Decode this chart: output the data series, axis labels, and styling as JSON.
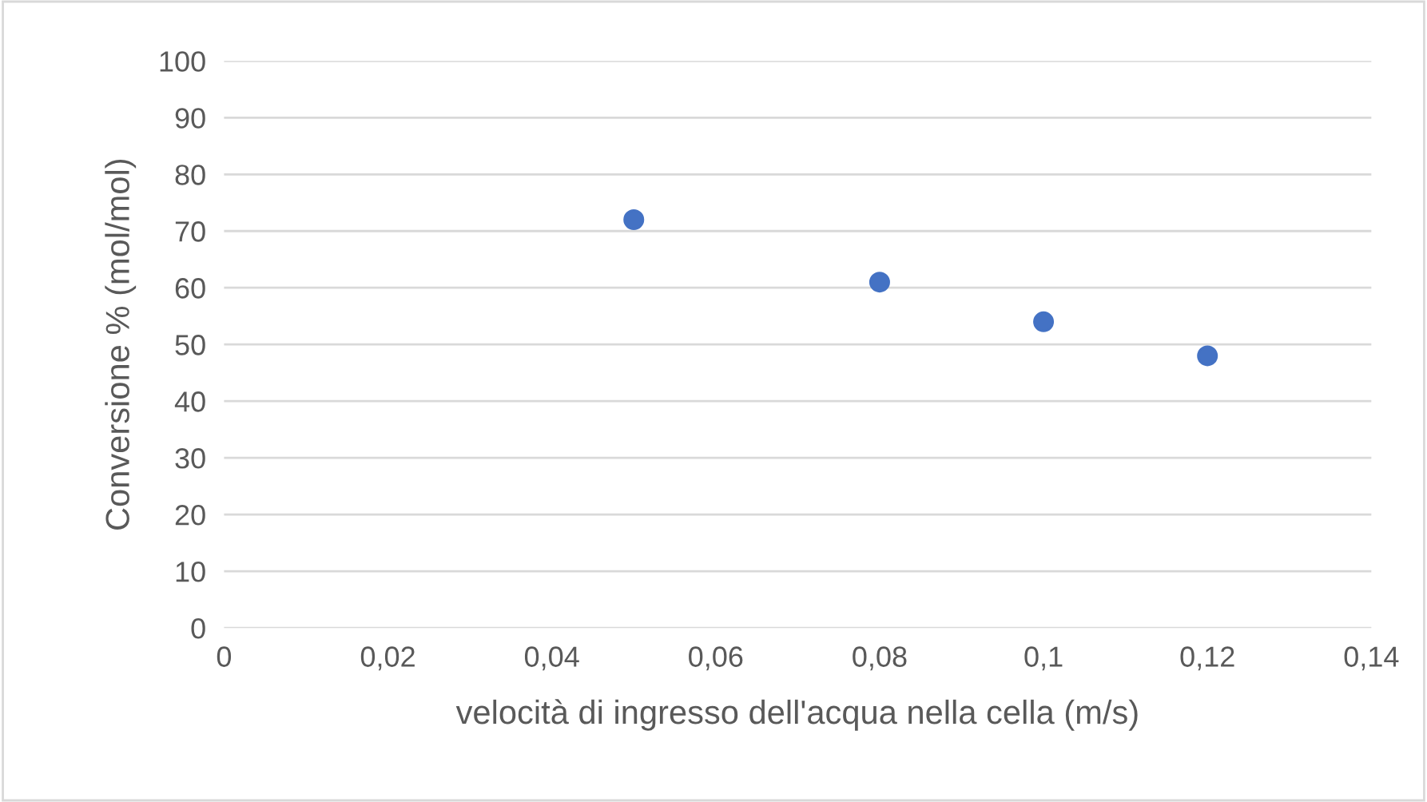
{
  "chart_data": {
    "type": "scatter",
    "xlabel": "velocità di ingresso dell'acqua nella cella (m/s)",
    "ylabel": "Conversione % (mol/mol)",
    "x": [
      0.05,
      0.08,
      0.1,
      0.12
    ],
    "series": [
      {
        "color": "#4472c4",
        "values": [
          72,
          61,
          54,
          48
        ]
      }
    ],
    "xlim": [
      0,
      0.14
    ],
    "xticks": [
      0,
      {
        "value": 0.02,
        "label": "0,02"
      },
      {
        "value": 0.04,
        "label": "0,04"
      },
      {
        "value": 0.06,
        "label": "0,06"
      },
      {
        "value": 0.08,
        "label": "0,08"
      },
      {
        "value": 0.1,
        "label": "0,1"
      },
      {
        "value": 0.12,
        "label": "0,12"
      },
      {
        "value": 0.14,
        "label": "0,14"
      }
    ],
    "ylim": [
      0,
      100
    ],
    "yticks": [
      0,
      10,
      20,
      30,
      40,
      50,
      60,
      70,
      80,
      90,
      100
    ],
    "grid": "y",
    "marker": "circle",
    "legend": false
  }
}
